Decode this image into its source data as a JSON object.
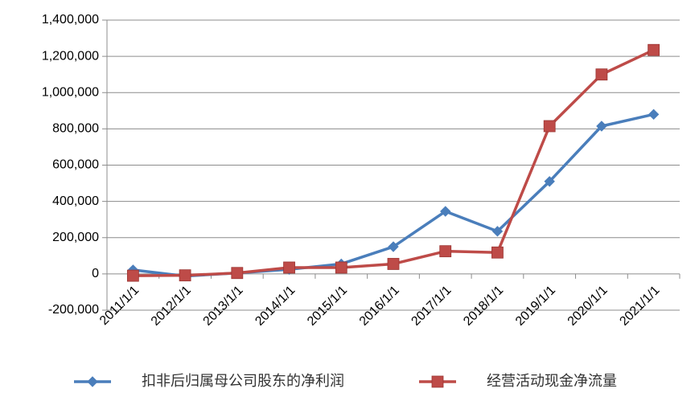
{
  "chart_data": {
    "type": "line",
    "title": "",
    "xlabel": "",
    "ylabel": "",
    "categories": [
      "2011/1/1",
      "2012/1/1",
      "2013/1/1",
      "2014/1/1",
      "2015/1/1",
      "2016/1/1",
      "2017/1/1",
      "2018/1/1",
      "2019/1/1",
      "2020/1/1",
      "2021/1/1"
    ],
    "ylim": [
      -200000,
      1400000
    ],
    "y_ticks": [
      -200000,
      0,
      200000,
      400000,
      600000,
      800000,
      1000000,
      1200000,
      1400000
    ],
    "y_tick_labels": [
      "-200,000",
      "0",
      "200,000",
      "400,000",
      "600,000",
      "800,000",
      "1,000,000",
      "1,200,000",
      "1,400,000"
    ],
    "negative_tick_color": "#c00000",
    "grid": true,
    "legend_position": "bottom",
    "series": [
      {
        "name": "扣非后归属母公司股东的净利润",
        "color": "#4a7ebb",
        "marker": "diamond",
        "values": [
          22000,
          -12000,
          5000,
          25000,
          55000,
          150000,
          345000,
          235000,
          510000,
          815000,
          880000
        ]
      },
      {
        "name": "经营活动现金净流量",
        "color": "#be4b48",
        "marker": "square",
        "values": [
          -10000,
          -8000,
          5000,
          35000,
          35000,
          55000,
          125000,
          118000,
          815000,
          1100000,
          1235000
        ]
      }
    ]
  }
}
